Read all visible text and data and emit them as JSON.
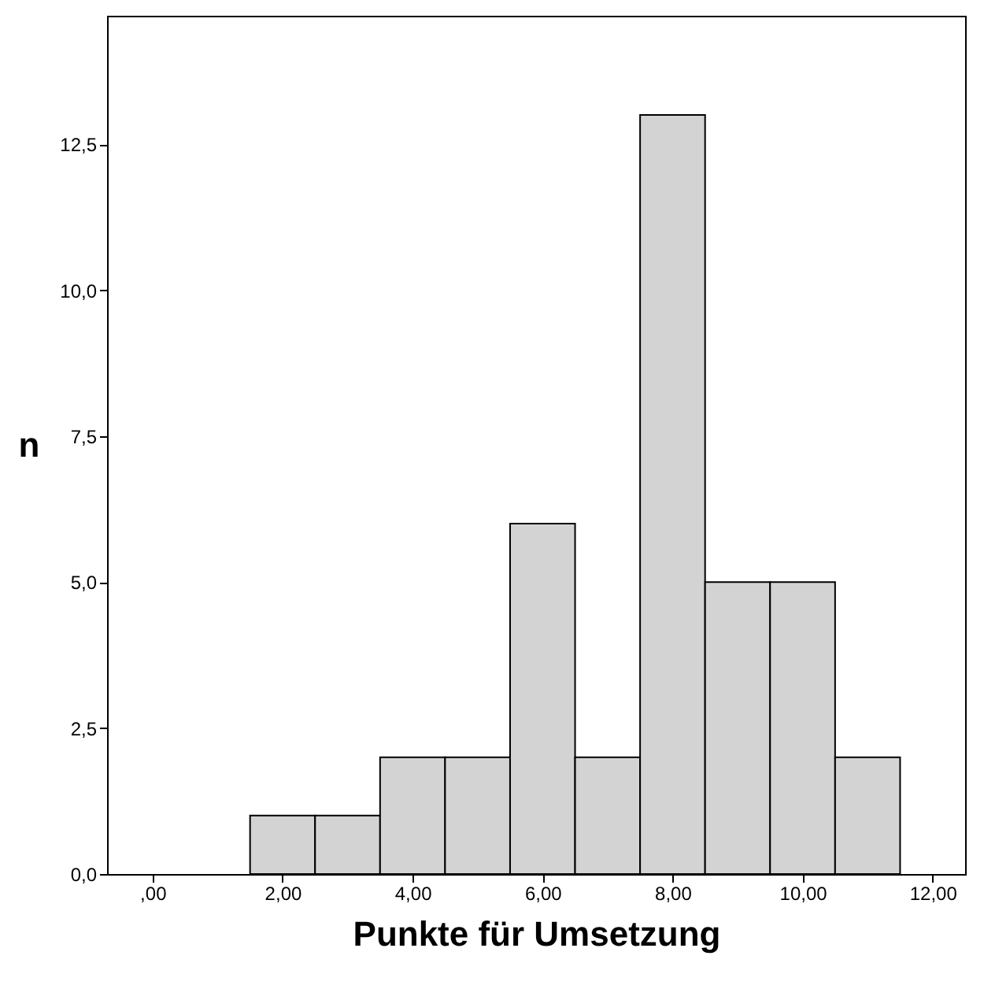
{
  "chart_data": {
    "type": "histogram",
    "xlabel": "Punkte für Umsetzung",
    "ylabel": "n",
    "bins": [
      1.5,
      2.5,
      3.5,
      4.5,
      5.5,
      6.5,
      7.5,
      8.5,
      9.5,
      10.5,
      11.5
    ],
    "values": [
      1,
      1,
      2,
      2,
      6,
      2,
      13,
      5,
      5,
      2
    ],
    "color": "#d3d3d3",
    "xlim": [
      -0.7,
      12.5
    ],
    "xticks": [
      {
        "value": 0,
        "label": ",00"
      },
      {
        "value": 2,
        "label": "2,00"
      },
      {
        "value": 4,
        "label": "4,00"
      },
      {
        "value": 6,
        "label": "6,00"
      },
      {
        "value": 8,
        "label": "8,00"
      },
      {
        "value": 10,
        "label": "10,00"
      },
      {
        "value": 12,
        "label": "12,00"
      }
    ],
    "ylim": [
      0,
      14.7
    ],
    "yticks": [
      {
        "value": 0,
        "label": "0,0"
      },
      {
        "value": 2.5,
        "label": "2,5"
      },
      {
        "value": 5,
        "label": "5,0"
      },
      {
        "value": 7.5,
        "label": "7,5"
      },
      {
        "value": 10,
        "label": "10,0"
      },
      {
        "value": 12.5,
        "label": "12,5"
      }
    ],
    "grid": false
  }
}
